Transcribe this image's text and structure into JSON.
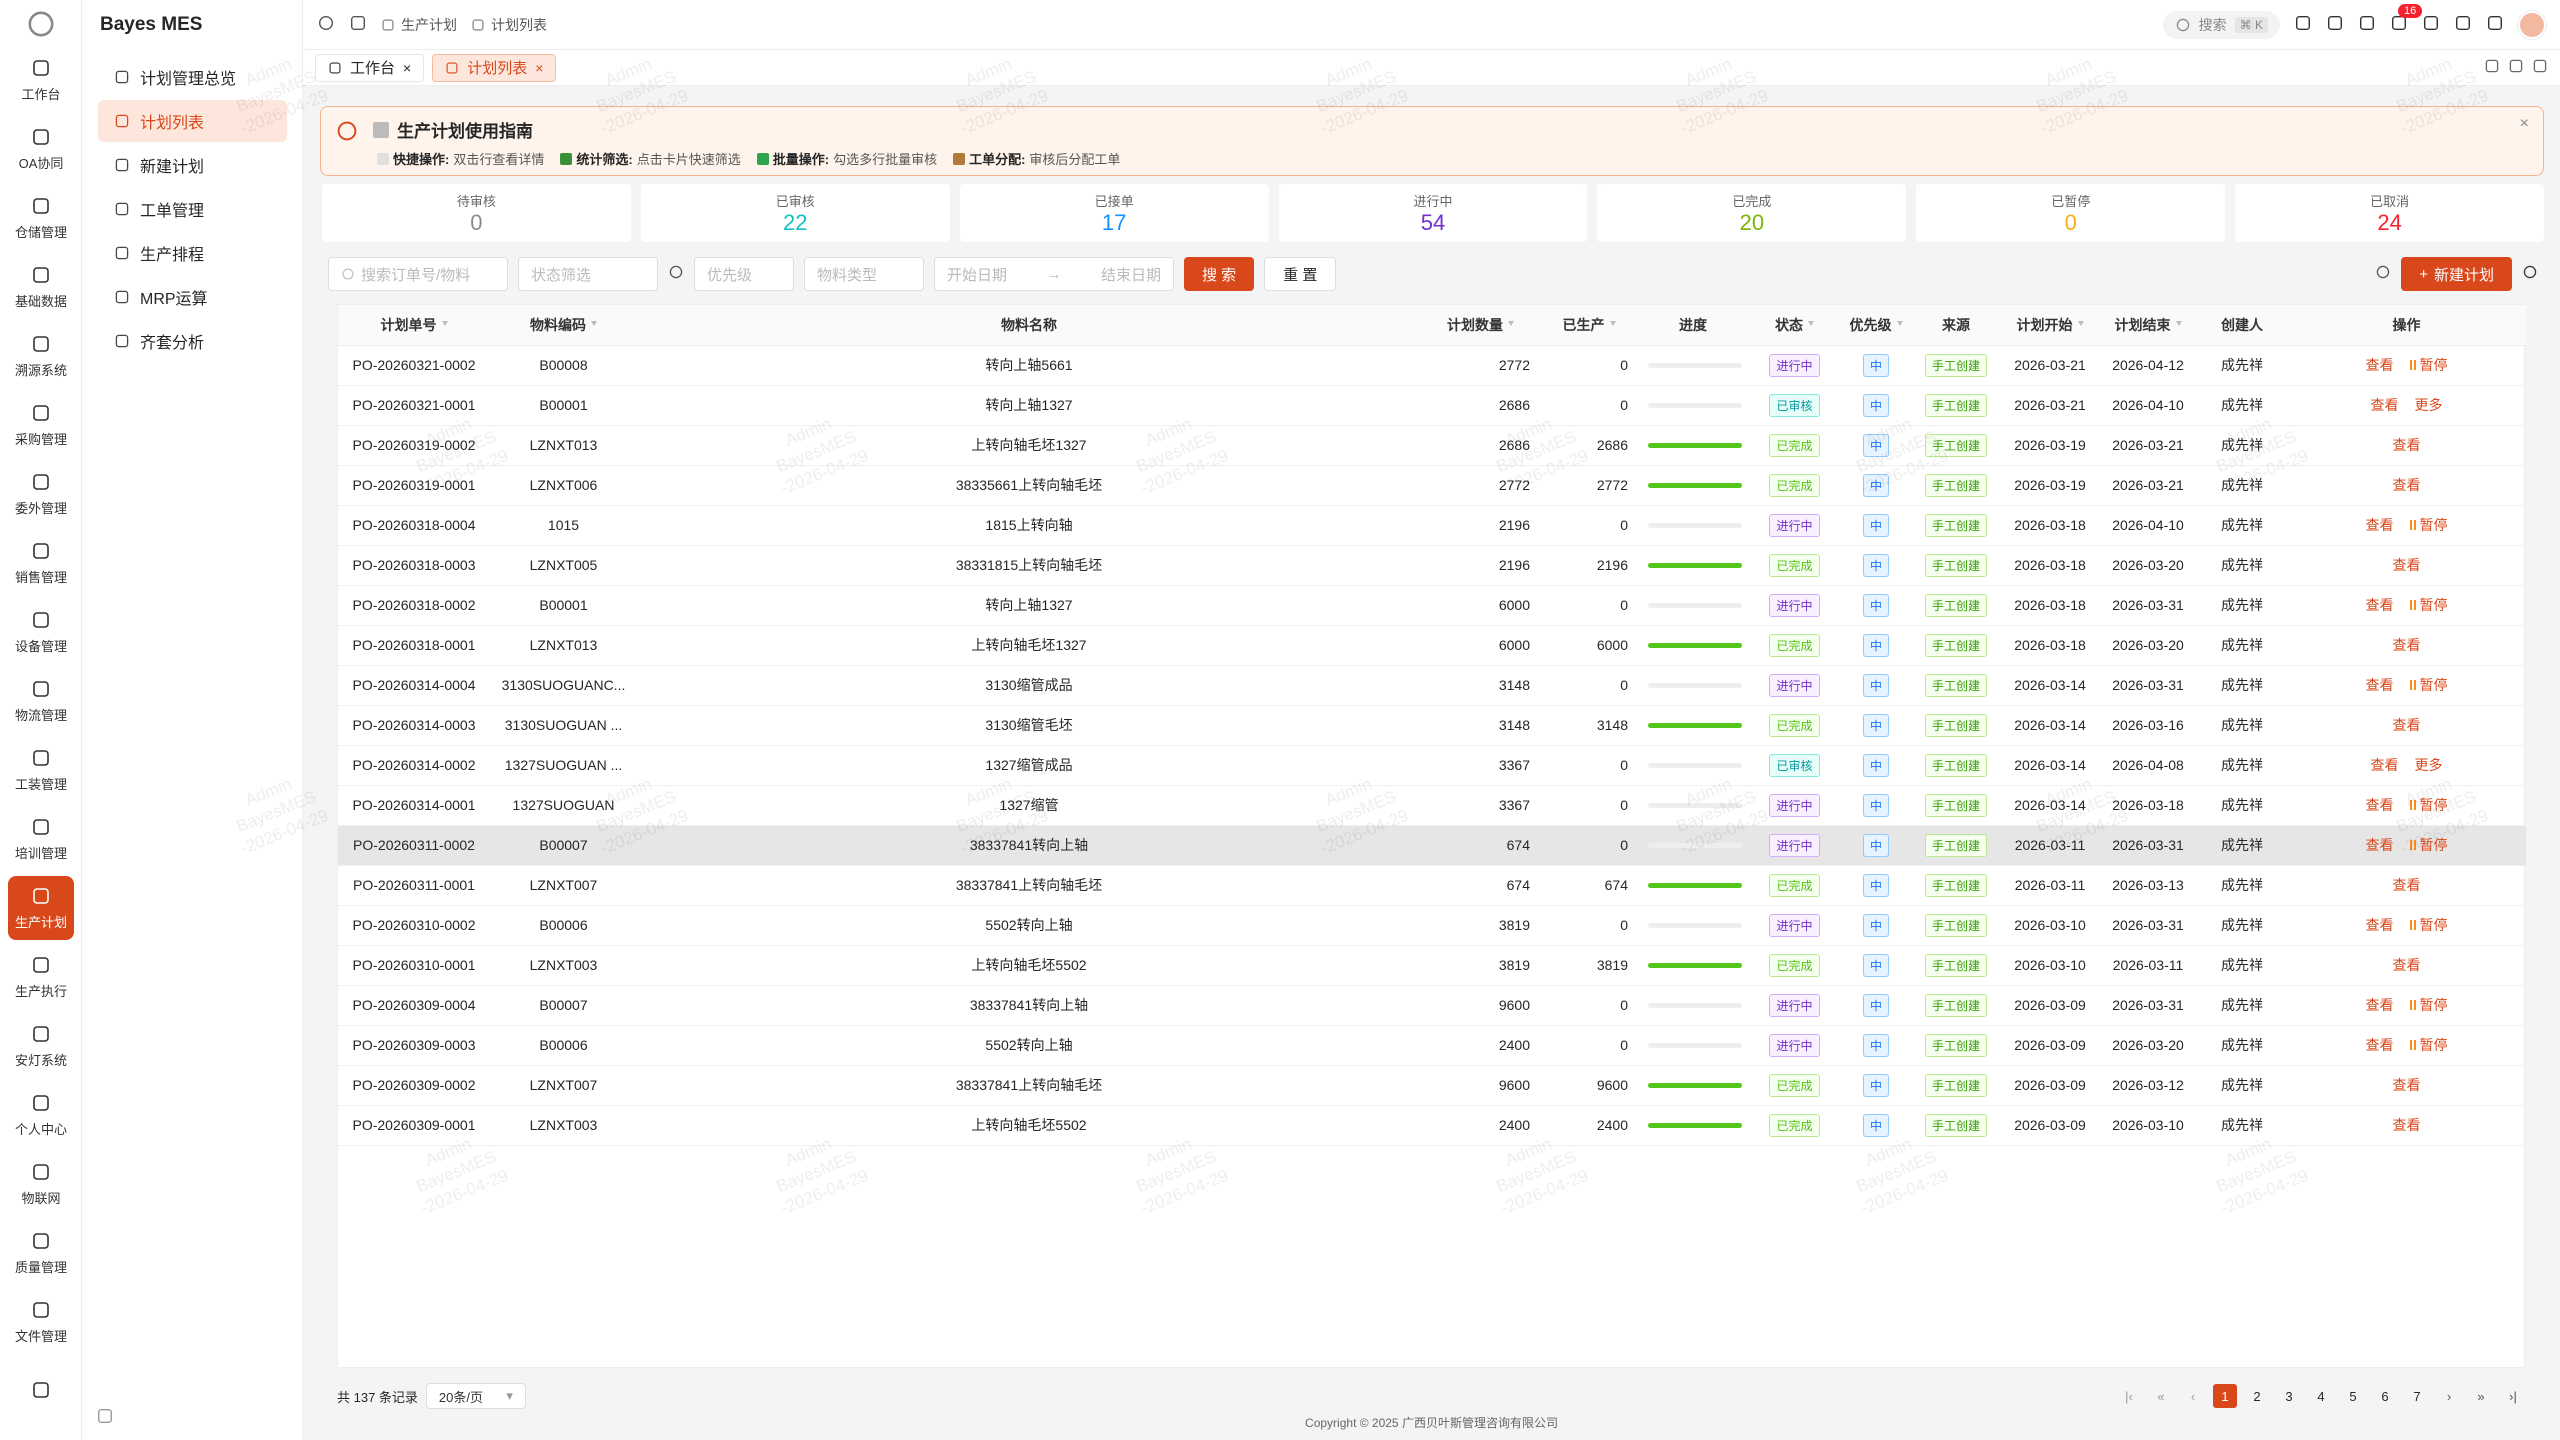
{
  "app": {
    "name": "Bayes MES"
  },
  "nav": [
    "工作台",
    "OA协同",
    "仓储管理",
    "基础数据",
    "溯源系统",
    "采购管理",
    "委外管理",
    "销售管理",
    "设备管理",
    "物流管理",
    "工装管理",
    "培训管理",
    "生产计划",
    "生产执行",
    "安灯系统",
    "个人中心",
    "物联网",
    "质量管理",
    "文件管理"
  ],
  "nav_active": 12,
  "submenu": [
    "计划管理总览",
    "计划列表",
    "新建计划",
    "工单管理",
    "生产排程",
    "MRP运算",
    "齐套分析"
  ],
  "submenu_active": 1,
  "breadcrumb": [
    "生产计划",
    "计划列表"
  ],
  "search": {
    "placeholder": "搜索",
    "shortcut": "⌘ K"
  },
  "notifications": 16,
  "tabs": [
    "工作台",
    "计划列表"
  ],
  "tab_active": 1,
  "guide": {
    "title": "生产计划使用指南",
    "items": [
      {
        "label": "快捷操作:",
        "text": "双击行查看详情"
      },
      {
        "label": "统计筛选:",
        "text": "点击卡片快速筛选"
      },
      {
        "label": "批量操作:",
        "text": "勾选多行批量审核"
      },
      {
        "label": "工单分配:",
        "text": "审核后分配工单"
      }
    ]
  },
  "stats": [
    {
      "label": "待审核",
      "value": 0,
      "color": "#8c8c8c"
    },
    {
      "label": "已审核",
      "value": 22,
      "color": "#13c2c2"
    },
    {
      "label": "已接单",
      "value": 17,
      "color": "#1890ff"
    },
    {
      "label": "进行中",
      "value": 54,
      "color": "#722ed1"
    },
    {
      "label": "已完成",
      "value": 20,
      "color": "#7cb305"
    },
    {
      "label": "已暂停",
      "value": 0,
      "color": "#faad14"
    },
    {
      "label": "已取消",
      "value": 24,
      "color": "#f5222d"
    }
  ],
  "filters": {
    "search": "搜索订单号/物料",
    "status": "状态筛选",
    "priority": "优先级",
    "material_type": "物料类型",
    "start_date": "开始日期",
    "end_date": "结束日期",
    "search_button": "搜 索",
    "reset_button": "重 置",
    "new_button": "新建计划"
  },
  "table": {
    "columns": [
      {
        "title": "计划单号",
        "sortable": true
      },
      {
        "title": "物料编码",
        "sortable": true
      },
      {
        "title": "物料名称",
        "sortable": false
      },
      {
        "title": "计划数量",
        "sortable": true
      },
      {
        "title": "已生产",
        "sortable": true
      },
      {
        "title": "进度",
        "sortable": false
      },
      {
        "title": "状态",
        "sortable": true
      },
      {
        "title": "优先级",
        "sortable": true
      },
      {
        "title": "来源",
        "sortable": false
      },
      {
        "title": "计划开始",
        "sortable": true
      },
      {
        "title": "计划结束",
        "sortable": true
      },
      {
        "title": "创建人",
        "sortable": false
      },
      {
        "title": "操作",
        "sortable": false
      }
    ],
    "selected_row": 12,
    "rows": [
      [
        "PO-20260321-0002",
        "B00008",
        "转向上轴5661",
        2772,
        0,
        "进行中",
        "中",
        "手工创建",
        "2026-03-21",
        "2026-04-12",
        "成先祥",
        [
          "查看",
          "暂停"
        ]
      ],
      [
        "PO-20260321-0001",
        "B00001",
        "转向上轴1327",
        2686,
        0,
        "已审核",
        "中",
        "手工创建",
        "2026-03-21",
        "2026-04-10",
        "成先祥",
        [
          "查看",
          "更多"
        ]
      ],
      [
        "PO-20260319-0002",
        "LZNXT013",
        "上转向轴毛坯1327",
        2686,
        2686,
        "已完成",
        "中",
        "手工创建",
        "2026-03-19",
        "2026-03-21",
        "成先祥",
        [
          "查看"
        ]
      ],
      [
        "PO-20260319-0001",
        "LZNXT006",
        "38335661上转向轴毛坯",
        2772,
        2772,
        "已完成",
        "中",
        "手工创建",
        "2026-03-19",
        "2026-03-21",
        "成先祥",
        [
          "查看"
        ]
      ],
      [
        "PO-20260318-0004",
        "1015",
        "1815上转向轴",
        2196,
        0,
        "进行中",
        "中",
        "手工创建",
        "2026-03-18",
        "2026-04-10",
        "成先祥",
        [
          "查看",
          "暂停"
        ]
      ],
      [
        "PO-20260318-0003",
        "LZNXT005",
        "38331815上转向轴毛坯",
        2196,
        2196,
        "已完成",
        "中",
        "手工创建",
        "2026-03-18",
        "2026-03-20",
        "成先祥",
        [
          "查看"
        ]
      ],
      [
        "PO-20260318-0002",
        "B00001",
        "转向上轴1327",
        6000,
        0,
        "进行中",
        "中",
        "手工创建",
        "2026-03-18",
        "2026-03-31",
        "成先祥",
        [
          "查看",
          "暂停"
        ]
      ],
      [
        "PO-20260318-0001",
        "LZNXT013",
        "上转向轴毛坯1327",
        6000,
        6000,
        "已完成",
        "中",
        "手工创建",
        "2026-03-18",
        "2026-03-20",
        "成先祥",
        [
          "查看"
        ]
      ],
      [
        "PO-20260314-0004",
        "3130SUOGUANC...",
        "3130缩管成品",
        3148,
        0,
        "进行中",
        "中",
        "手工创建",
        "2026-03-14",
        "2026-03-31",
        "成先祥",
        [
          "查看",
          "暂停"
        ]
      ],
      [
        "PO-20260314-0003",
        "3130SUOGUAN ...",
        "3130缩管毛坯",
        3148,
        3148,
        "已完成",
        "中",
        "手工创建",
        "2026-03-14",
        "2026-03-16",
        "成先祥",
        [
          "查看"
        ]
      ],
      [
        "PO-20260314-0002",
        "1327SUOGUAN ...",
        "1327缩管成品",
        3367,
        0,
        "已审核",
        "中",
        "手工创建",
        "2026-03-14",
        "2026-04-08",
        "成先祥",
        [
          "查看",
          "更多"
        ]
      ],
      [
        "PO-20260314-0001",
        "1327SUOGUAN",
        "1327缩管",
        3367,
        0,
        "进行中",
        "中",
        "手工创建",
        "2026-03-14",
        "2026-03-18",
        "成先祥",
        [
          "查看",
          "暂停"
        ]
      ],
      [
        "PO-20260311-0002",
        "B00007",
        "38337841转向上轴",
        674,
        0,
        "进行中",
        "中",
        "手工创建",
        "2026-03-11",
        "2026-03-31",
        "成先祥",
        [
          "查看",
          "暂停"
        ]
      ],
      [
        "PO-20260311-0001",
        "LZNXT007",
        "38337841上转向轴毛坯",
        674,
        674,
        "已完成",
        "中",
        "手工创建",
        "2026-03-11",
        "2026-03-13",
        "成先祥",
        [
          "查看"
        ]
      ],
      [
        "PO-20260310-0002",
        "B00006",
        "5502转向上轴",
        3819,
        0,
        "进行中",
        "中",
        "手工创建",
        "2026-03-10",
        "2026-03-31",
        "成先祥",
        [
          "查看",
          "暂停"
        ]
      ],
      [
        "PO-20260310-0001",
        "LZNXT003",
        "上转向轴毛坯5502",
        3819,
        3819,
        "已完成",
        "中",
        "手工创建",
        "2026-03-10",
        "2026-03-11",
        "成先祥",
        [
          "查看"
        ]
      ],
      [
        "PO-20260309-0004",
        "B00007",
        "38337841转向上轴",
        9600,
        0,
        "进行中",
        "中",
        "手工创建",
        "2026-03-09",
        "2026-03-31",
        "成先祥",
        [
          "查看",
          "暂停"
        ]
      ],
      [
        "PO-20260309-0003",
        "B00006",
        "5502转向上轴",
        2400,
        0,
        "进行中",
        "中",
        "手工创建",
        "2026-03-09",
        "2026-03-20",
        "成先祥",
        [
          "查看",
          "暂停"
        ]
      ],
      [
        "PO-20260309-0002",
        "LZNXT007",
        "38337841上转向轴毛坯",
        9600,
        9600,
        "已完成",
        "中",
        "手工创建",
        "2026-03-09",
        "2026-03-12",
        "成先祥",
        [
          "查看"
        ]
      ],
      [
        "PO-20260309-0001",
        "LZNXT003",
        "上转向轴毛坯5502",
        2400,
        2400,
        "已完成",
        "中",
        "手工创建",
        "2026-03-09",
        "2026-03-10",
        "成先祥",
        [
          "查看"
        ]
      ]
    ]
  },
  "pagination": {
    "total": "共 137 条记录",
    "page_size": "20条/页",
    "pages": [
      1,
      2,
      3,
      4,
      5,
      6,
      7
    ],
    "current": 1
  },
  "footer": "Copyright © 2025 广西贝叶斯管理咨询有限公司",
  "watermark": [
    "Admin",
    "BayesMES",
    "-2026-04-29"
  ]
}
